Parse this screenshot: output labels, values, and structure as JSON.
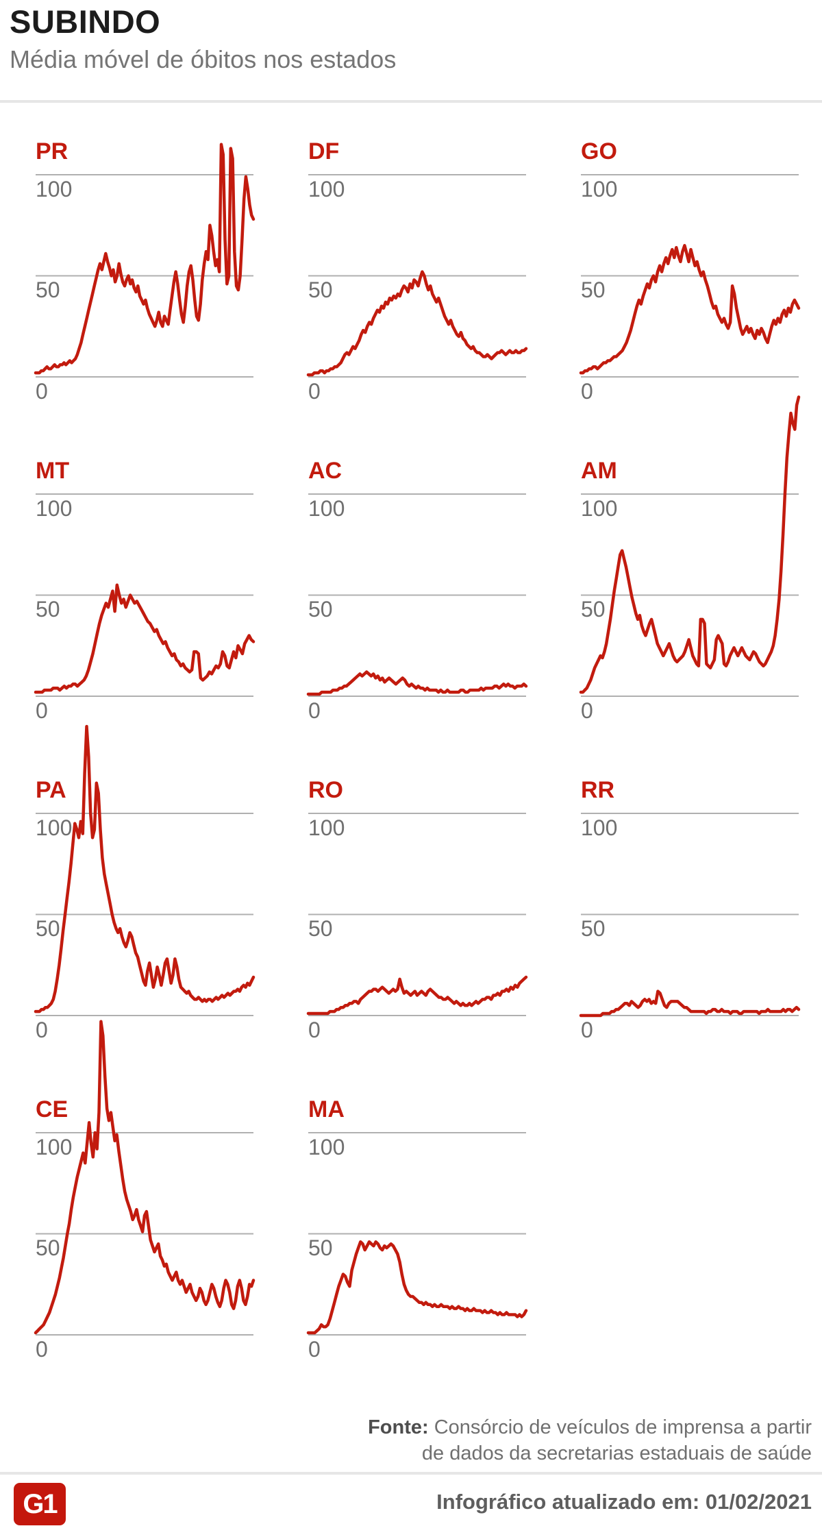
{
  "header": {
    "title": "SUBINDO",
    "subtitle": "Média móvel de óbitos nos estados"
  },
  "axis": {
    "tick_labels_top_to_bottom": [
      "100",
      "50",
      "0"
    ]
  },
  "colors": {
    "line": "#c21b0e",
    "state_label": "#c21b0e",
    "gridline": "#b0b0b0",
    "tick_text": "#6f6f6f",
    "title_text": "#1c1c1c",
    "subtitle_text": "#757575",
    "divider": "#e6e6e6",
    "logo_background": "#c4170c"
  },
  "chart_data": {
    "type": "line",
    "title": "Média móvel de óbitos nos estados",
    "yticks": [
      0,
      50,
      100
    ],
    "ylim": [
      0,
      160
    ],
    "grid": "horizontal gridlines at 0, 50 and 100 only",
    "legend": "none",
    "x_axis": "time, unlabeled",
    "series": [
      {
        "name": "PR",
        "values": [
          2,
          2,
          2,
          3,
          3,
          4,
          5,
          4,
          4,
          5,
          6,
          5,
          5,
          6,
          6,
          7,
          6,
          7,
          8,
          7,
          8,
          9,
          11,
          14,
          17,
          21,
          25,
          29,
          33,
          37,
          41,
          45,
          49,
          53,
          56,
          53,
          57,
          61,
          57,
          54,
          50,
          53,
          47,
          50,
          56,
          51,
          47,
          45,
          48,
          50,
          46,
          48,
          44,
          42,
          45,
          40,
          38,
          36,
          38,
          34,
          31,
          29,
          27,
          25,
          28,
          32,
          27,
          25,
          30,
          28,
          26,
          33,
          40,
          47,
          52,
          46,
          38,
          31,
          27,
          35,
          45,
          52,
          55,
          48,
          38,
          30,
          28,
          36,
          48,
          56,
          62,
          58,
          75,
          70,
          62,
          55,
          58,
          52,
          115,
          110,
          68,
          46,
          50,
          113,
          108,
          62,
          45,
          43,
          50,
          68,
          88,
          99,
          93,
          85,
          80,
          78
        ]
      },
      {
        "name": "DF",
        "values": [
          1,
          1,
          1,
          2,
          2,
          2,
          3,
          3,
          2,
          3,
          3,
          4,
          4,
          5,
          5,
          6,
          7,
          9,
          11,
          12,
          11,
          13,
          15,
          14,
          16,
          18,
          21,
          23,
          22,
          25,
          27,
          26,
          29,
          31,
          33,
          32,
          35,
          34,
          37,
          36,
          39,
          38,
          40,
          39,
          41,
          40,
          43,
          45,
          44,
          42,
          46,
          44,
          48,
          47,
          45,
          49,
          52,
          50,
          46,
          43,
          45,
          41,
          39,
          37,
          39,
          36,
          33,
          30,
          28,
          26,
          28,
          25,
          23,
          21,
          20,
          22,
          19,
          18,
          16,
          15,
          14,
          15,
          13,
          12,
          12,
          11,
          10,
          10,
          11,
          10,
          9,
          10,
          11,
          12,
          12,
          13,
          12,
          11,
          12,
          13,
          12,
          12,
          13,
          12,
          12,
          13,
          13,
          14
        ]
      },
      {
        "name": "GO",
        "values": [
          2,
          2,
          3,
          3,
          4,
          4,
          5,
          5,
          4,
          5,
          6,
          7,
          7,
          8,
          8,
          9,
          10,
          10,
          11,
          12,
          13,
          15,
          17,
          20,
          23,
          27,
          31,
          35,
          38,
          36,
          40,
          43,
          46,
          44,
          48,
          50,
          47,
          52,
          55,
          52,
          56,
          59,
          56,
          60,
          63,
          59,
          64,
          60,
          57,
          62,
          65,
          61,
          57,
          63,
          59,
          55,
          57,
          53,
          50,
          52,
          48,
          45,
          41,
          37,
          34,
          35,
          31,
          29,
          27,
          29,
          26,
          24,
          27,
          45,
          41,
          34,
          29,
          24,
          21,
          23,
          25,
          22,
          24,
          21,
          19,
          23,
          21,
          24,
          22,
          19,
          17,
          21,
          25,
          28,
          26,
          29,
          27,
          31,
          33,
          30,
          34,
          32,
          36,
          38,
          36,
          34
        ]
      },
      {
        "name": "MT",
        "values": [
          2,
          2,
          2,
          2,
          3,
          3,
          3,
          3,
          4,
          4,
          4,
          3,
          4,
          5,
          4,
          5,
          5,
          6,
          6,
          5,
          6,
          7,
          8,
          10,
          13,
          17,
          21,
          26,
          31,
          36,
          40,
          43,
          46,
          44,
          48,
          52,
          42,
          55,
          50,
          46,
          48,
          44,
          47,
          50,
          48,
          46,
          47,
          45,
          43,
          41,
          39,
          37,
          36,
          34,
          32,
          33,
          30,
          28,
          26,
          27,
          24,
          22,
          20,
          21,
          18,
          17,
          15,
          16,
          14,
          13,
          12,
          13,
          22,
          22,
          21,
          9,
          8,
          9,
          10,
          12,
          11,
          13,
          15,
          14,
          16,
          22,
          20,
          15,
          14,
          18,
          22,
          19,
          25,
          23,
          21,
          26,
          28,
          30,
          28,
          27
        ]
      },
      {
        "name": "AC",
        "values": [
          1,
          1,
          1,
          1,
          1,
          1,
          2,
          2,
          2,
          2,
          2,
          3,
          3,
          3,
          4,
          4,
          5,
          5,
          6,
          7,
          8,
          9,
          10,
          11,
          10,
          11,
          12,
          11,
          10,
          11,
          9,
          10,
          8,
          9,
          7,
          8,
          9,
          8,
          7,
          6,
          7,
          8,
          9,
          8,
          6,
          5,
          6,
          5,
          4,
          5,
          4,
          4,
          3,
          4,
          3,
          3,
          3,
          3,
          2,
          3,
          2,
          2,
          3,
          2,
          2,
          2,
          2,
          2,
          3,
          3,
          2,
          2,
          3,
          3,
          3,
          3,
          3,
          4,
          3,
          4,
          4,
          4,
          4,
          5,
          5,
          4,
          5,
          6,
          5,
          6,
          5,
          5,
          4,
          5,
          5,
          5,
          6,
          5
        ]
      },
      {
        "name": "AM",
        "values": [
          2,
          2,
          3,
          4,
          6,
          8,
          11,
          14,
          16,
          18,
          20,
          19,
          22,
          26,
          32,
          38,
          45,
          52,
          58,
          64,
          70,
          72,
          68,
          64,
          59,
          54,
          49,
          45,
          41,
          38,
          40,
          35,
          32,
          30,
          33,
          36,
          38,
          34,
          30,
          26,
          24,
          22,
          20,
          22,
          24,
          26,
          23,
          20,
          18,
          17,
          18,
          19,
          20,
          22,
          25,
          28,
          24,
          20,
          18,
          16,
          15,
          38,
          38,
          36,
          16,
          15,
          14,
          16,
          18,
          28,
          30,
          28,
          26,
          16,
          15,
          17,
          20,
          22,
          24,
          22,
          20,
          22,
          24,
          22,
          20,
          19,
          18,
          20,
          22,
          21,
          19,
          17,
          16,
          15,
          16,
          18,
          20,
          22,
          25,
          30,
          38,
          48,
          62,
          80,
          100,
          118,
          130,
          140,
          135,
          132,
          144,
          148
        ]
      },
      {
        "name": "PA",
        "values": [
          2,
          2,
          2,
          3,
          3,
          4,
          4,
          5,
          6,
          8,
          12,
          18,
          25,
          33,
          42,
          50,
          58,
          66,
          75,
          85,
          95,
          92,
          88,
          96,
          90,
          120,
          143,
          128,
          100,
          88,
          92,
          115,
          110,
          92,
          78,
          70,
          65,
          60,
          55,
          50,
          46,
          43,
          41,
          43,
          39,
          36,
          34,
          37,
          41,
          39,
          35,
          31,
          29,
          25,
          21,
          17,
          15,
          22,
          26,
          20,
          14,
          18,
          24,
          20,
          15,
          20,
          26,
          28,
          22,
          16,
          20,
          28,
          24,
          18,
          14,
          13,
          12,
          11,
          12,
          10,
          9,
          8,
          8,
          9,
          8,
          7,
          8,
          7,
          8,
          8,
          7,
          8,
          9,
          8,
          9,
          10,
          9,
          10,
          11,
          10,
          11,
          12,
          12,
          13,
          12,
          14,
          15,
          14,
          16,
          15,
          17,
          19
        ]
      },
      {
        "name": "RO",
        "values": [
          1,
          1,
          1,
          1,
          1,
          1,
          1,
          1,
          1,
          1,
          2,
          2,
          2,
          3,
          3,
          4,
          4,
          5,
          5,
          6,
          6,
          7,
          7,
          6,
          8,
          9,
          10,
          11,
          12,
          12,
          13,
          13,
          12,
          13,
          14,
          13,
          12,
          11,
          12,
          13,
          12,
          13,
          18,
          14,
          11,
          12,
          11,
          10,
          11,
          12,
          10,
          11,
          12,
          11,
          10,
          12,
          13,
          12,
          11,
          10,
          9,
          9,
          8,
          8,
          9,
          8,
          7,
          6,
          7,
          6,
          5,
          6,
          5,
          5,
          6,
          5,
          6,
          7,
          6,
          7,
          8,
          8,
          9,
          9,
          8,
          10,
          10,
          11,
          10,
          12,
          12,
          13,
          12,
          14,
          13,
          15,
          14,
          16,
          17,
          18,
          19
        ]
      },
      {
        "name": "RR",
        "values": [
          0,
          0,
          0,
          0,
          0,
          0,
          0,
          0,
          0,
          0,
          1,
          1,
          1,
          1,
          2,
          2,
          3,
          3,
          4,
          5,
          6,
          6,
          5,
          7,
          6,
          5,
          4,
          5,
          7,
          8,
          7,
          8,
          6,
          7,
          6,
          12,
          11,
          8,
          5,
          4,
          6,
          7,
          7,
          7,
          7,
          6,
          5,
          4,
          4,
          3,
          2,
          2,
          2,
          2,
          2,
          2,
          2,
          1,
          2,
          2,
          3,
          3,
          2,
          2,
          3,
          2,
          2,
          2,
          1,
          2,
          2,
          2,
          1,
          1,
          2,
          2,
          2,
          2,
          2,
          2,
          2,
          1,
          2,
          2,
          2,
          3,
          2,
          2,
          2,
          2,
          2,
          2,
          3,
          2,
          3,
          3,
          2,
          3,
          4,
          3
        ]
      },
      {
        "name": "CE",
        "values": [
          1,
          2,
          3,
          4,
          5,
          7,
          9,
          11,
          14,
          17,
          20,
          24,
          28,
          33,
          38,
          44,
          50,
          55,
          62,
          68,
          73,
          78,
          82,
          86,
          90,
          85,
          95,
          105,
          95,
          88,
          100,
          92,
          110,
          155,
          148,
          128,
          112,
          106,
          110,
          103,
          96,
          99,
          91,
          84,
          77,
          71,
          67,
          64,
          61,
          57,
          59,
          62,
          57,
          54,
          51,
          59,
          61,
          54,
          47,
          44,
          41,
          43,
          45,
          39,
          37,
          34,
          35,
          31,
          29,
          27,
          29,
          31,
          27,
          25,
          27,
          24,
          21,
          23,
          25,
          21,
          19,
          17,
          19,
          23,
          21,
          17,
          15,
          17,
          21,
          25,
          23,
          19,
          16,
          14,
          17,
          23,
          27,
          25,
          21,
          15,
          13,
          17,
          24,
          27,
          23,
          17,
          15,
          19,
          25,
          24,
          27
        ]
      },
      {
        "name": "MA",
        "values": [
          1,
          1,
          1,
          1,
          2,
          3,
          5,
          4,
          4,
          5,
          8,
          12,
          16,
          20,
          24,
          27,
          30,
          29,
          26,
          24,
          32,
          36,
          40,
          43,
          46,
          45,
          42,
          44,
          46,
          45,
          44,
          46,
          45,
          43,
          42,
          44,
          43,
          44,
          45,
          44,
          42,
          40,
          36,
          30,
          25,
          22,
          20,
          19,
          19,
          18,
          17,
          16,
          16,
          15,
          16,
          15,
          15,
          14,
          15,
          14,
          14,
          15,
          14,
          14,
          14,
          13,
          14,
          13,
          13,
          14,
          13,
          13,
          12,
          13,
          12,
          12,
          13,
          12,
          12,
          12,
          11,
          12,
          11,
          11,
          12,
          11,
          11,
          10,
          11,
          10,
          10,
          11,
          10,
          10,
          10,
          10,
          9,
          10,
          9,
          10,
          12
        ]
      }
    ]
  },
  "footer": {
    "source_label": "Fonte:",
    "source_line1": "Consórcio de veículos de imprensa a partir",
    "source_line2": "de dados da secretarias estaduais de saúde",
    "logo_text": "G1",
    "updated": "Infográfico atualizado em: 01/02/2021"
  }
}
